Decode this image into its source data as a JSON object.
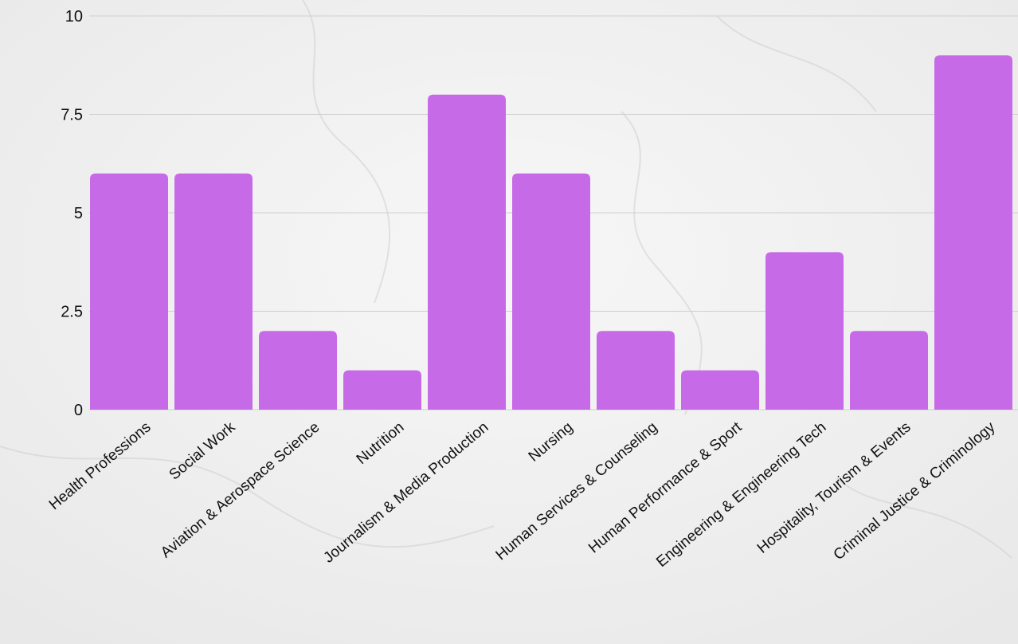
{
  "theme": {
    "bar_color": "#c76ae8",
    "grid_color": "#cfcfcf",
    "text_color": "#111111",
    "background": "marble-white"
  },
  "chart_data": {
    "type": "bar",
    "title": "",
    "xlabel": "",
    "ylabel": "",
    "categories": [
      "Health Professions",
      "Social Work",
      "Aviation & Aerospace Science",
      "Nutrition",
      "Journalism & Media Production",
      "Nursing",
      "Human Services & Counseling",
      "Human Performance & Sport",
      "Engineering & Engineering Tech",
      "Hospitality, Tourism & Events",
      "Criminal Justice & Criminology"
    ],
    "values": [
      6,
      6,
      2,
      1,
      8,
      6,
      2,
      1,
      4,
      2,
      9
    ],
    "ylim": [
      0,
      10
    ],
    "yticks": [
      0,
      2.5,
      5,
      7.5,
      10
    ],
    "ytick_labels": [
      "0",
      "2.5",
      "5",
      "7.5",
      "10"
    ],
    "grid": true,
    "legend": "none"
  }
}
